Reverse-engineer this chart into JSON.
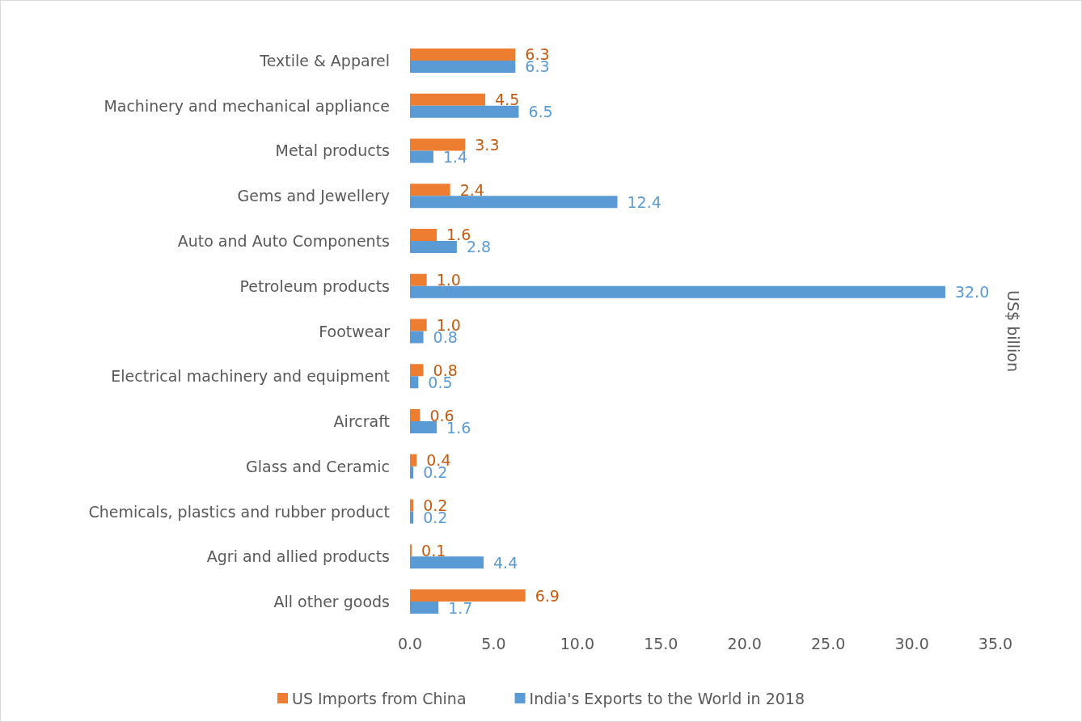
{
  "chart_data": {
    "type": "bar",
    "orientation": "horizontal",
    "y2label": "US$ billion",
    "categories": [
      "Textile & Apparel",
      "Machinery and mechanical appliance",
      "Metal products",
      "Gems and Jewellery",
      "Auto and Auto Components",
      "Petroleum products",
      "Footwear",
      "Electrical machinery and equipment",
      "Aircraft",
      "Glass and Ceramic",
      "Chemicals, plastics and rubber product",
      "Agri and allied products",
      "All other goods"
    ],
    "series": [
      {
        "name": "US Imports from China",
        "color": "#ed7d31",
        "values": [
          6.3,
          4.5,
          3.3,
          2.4,
          1.6,
          1.0,
          1.0,
          0.8,
          0.6,
          0.4,
          0.2,
          0.1,
          6.9
        ],
        "value_labels": [
          "6.3",
          "4.5",
          "3.3",
          "2.4",
          "1.6",
          "1.0",
          "1.0",
          "0.8",
          "0.6",
          "0.4",
          "0.2",
          "0.1",
          "6.9"
        ]
      },
      {
        "name": "India's Exports to the World in 2018",
        "color": "#5b9bd5",
        "values": [
          6.3,
          6.5,
          1.4,
          12.4,
          2.8,
          32.0,
          0.8,
          0.5,
          1.6,
          0.2,
          0.2,
          4.4,
          1.7
        ],
        "value_labels": [
          "6.3",
          "6.5",
          "1.4",
          "12.4",
          "2.8",
          "32.0",
          "0.8",
          "0.5",
          "1.6",
          "0.2",
          "0.2",
          "4.4",
          "1.7"
        ]
      }
    ],
    "xlim": [
      0,
      35
    ],
    "xticks": [
      {
        "value": 0,
        "label": "0.0"
      },
      {
        "value": 5,
        "label": "5.0"
      },
      {
        "value": 10,
        "label": "10.0"
      },
      {
        "value": 15,
        "label": "15.0"
      },
      {
        "value": 20,
        "label": "20.0"
      },
      {
        "value": 25,
        "label": "25.0"
      },
      {
        "value": 30,
        "label": "30.0"
      },
      {
        "value": 35,
        "label": "35.0"
      }
    ],
    "grid": false,
    "legend": "bottom"
  }
}
